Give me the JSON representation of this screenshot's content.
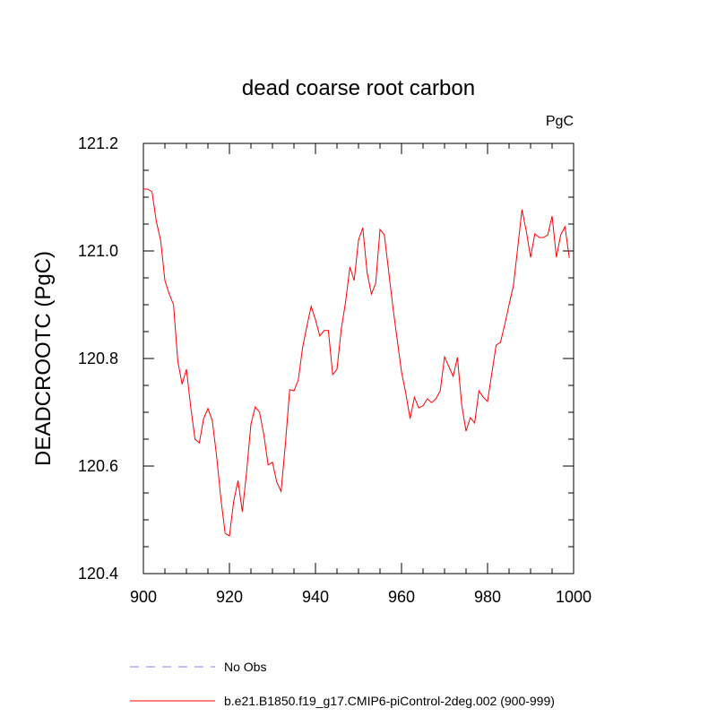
{
  "chart_data": {
    "type": "line",
    "title": "dead coarse root carbon",
    "units_label": "PgC",
    "ylabel": "DEADCROOTC  (PgC)",
    "xlim": [
      900,
      1000
    ],
    "ylim": [
      120.4,
      121.2
    ],
    "x_ticks": [
      "900",
      "920",
      "940",
      "960",
      "980",
      "1000"
    ],
    "y_ticks": [
      "120.4",
      "120.6",
      "120.8",
      "121.0",
      "121.2"
    ],
    "grid": false,
    "legend_position": "bottom",
    "colors": {
      "obs": "#8080ff",
      "model": "#ff0000"
    },
    "series": [
      {
        "name": "No Obs",
        "style": "dashed",
        "x": [],
        "values": []
      },
      {
        "name": "b.e21.B1850.f19_g17.CMIP6-piControl-2deg.002 (900-999)",
        "style": "solid",
        "x": [
          900,
          901,
          902,
          903,
          904,
          905,
          906,
          907,
          908,
          909,
          910,
          911,
          912,
          913,
          914,
          915,
          916,
          917,
          918,
          919,
          920,
          921,
          922,
          923,
          924,
          925,
          926,
          927,
          928,
          929,
          930,
          931,
          932,
          933,
          934,
          935,
          936,
          937,
          938,
          939,
          940,
          941,
          942,
          943,
          944,
          945,
          946,
          947,
          948,
          949,
          950,
          951,
          952,
          953,
          954,
          955,
          956,
          957,
          958,
          959,
          960,
          961,
          962,
          963,
          964,
          965,
          966,
          967,
          968,
          969,
          970,
          971,
          972,
          973,
          974,
          975,
          976,
          977,
          978,
          979,
          980,
          981,
          982,
          983,
          984,
          985,
          986,
          987,
          988,
          989,
          990,
          991,
          992,
          993,
          994,
          995,
          996,
          997,
          998,
          999
        ],
        "values": [
          121.115,
          121.115,
          121.11,
          121.055,
          121.02,
          120.945,
          120.92,
          120.9,
          120.795,
          120.752,
          120.78,
          120.71,
          120.65,
          120.643,
          120.688,
          120.707,
          120.685,
          120.62,
          120.54,
          120.475,
          120.47,
          120.535,
          120.573,
          120.515,
          120.59,
          120.678,
          120.71,
          120.7,
          120.658,
          120.602,
          120.607,
          120.57,
          120.553,
          120.64,
          120.742,
          120.74,
          120.76,
          120.82,
          120.86,
          120.897,
          120.872,
          120.842,
          120.852,
          120.852,
          120.77,
          120.78,
          120.855,
          120.905,
          120.97,
          120.945,
          121.02,
          121.043,
          120.96,
          120.92,
          120.94,
          121.04,
          121.03,
          120.963,
          120.895,
          120.835,
          120.775,
          120.735,
          120.688,
          120.728,
          120.708,
          120.712,
          120.725,
          120.718,
          120.725,
          120.74,
          120.803,
          120.785,
          120.767,
          120.802,
          120.713,
          120.665,
          120.69,
          120.68,
          120.74,
          120.728,
          120.72,
          120.773,
          120.825,
          120.83,
          120.863,
          120.9,
          120.935,
          121.005,
          121.077,
          121.037,
          120.988,
          121.032,
          121.025,
          121.025,
          121.03,
          121.065,
          120.988,
          121.03,
          121.045,
          120.987
        ]
      }
    ]
  }
}
